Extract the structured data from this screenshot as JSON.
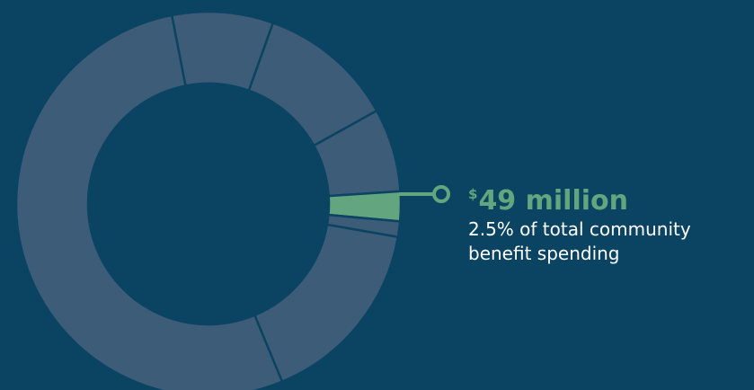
{
  "colors": {
    "background": "#0b4463",
    "segment": "#3d5c77",
    "highlight": "#63a57e",
    "divider": "#0b4463"
  },
  "callout": {
    "currency_symbol": "$",
    "amount": "49 million",
    "description": "2.5% of total community benefit spending"
  },
  "chart_data": {
    "type": "pie",
    "style": "donut",
    "highlighted_index": 3,
    "slices": [
      {
        "value": 8.5
      },
      {
        "value": 11.5
      },
      {
        "value": 7.0
      },
      {
        "value": 2.5
      },
      {
        "value": 1.3
      },
      {
        "value": 16.0
      },
      {
        "value": 53.2
      }
    ]
  }
}
